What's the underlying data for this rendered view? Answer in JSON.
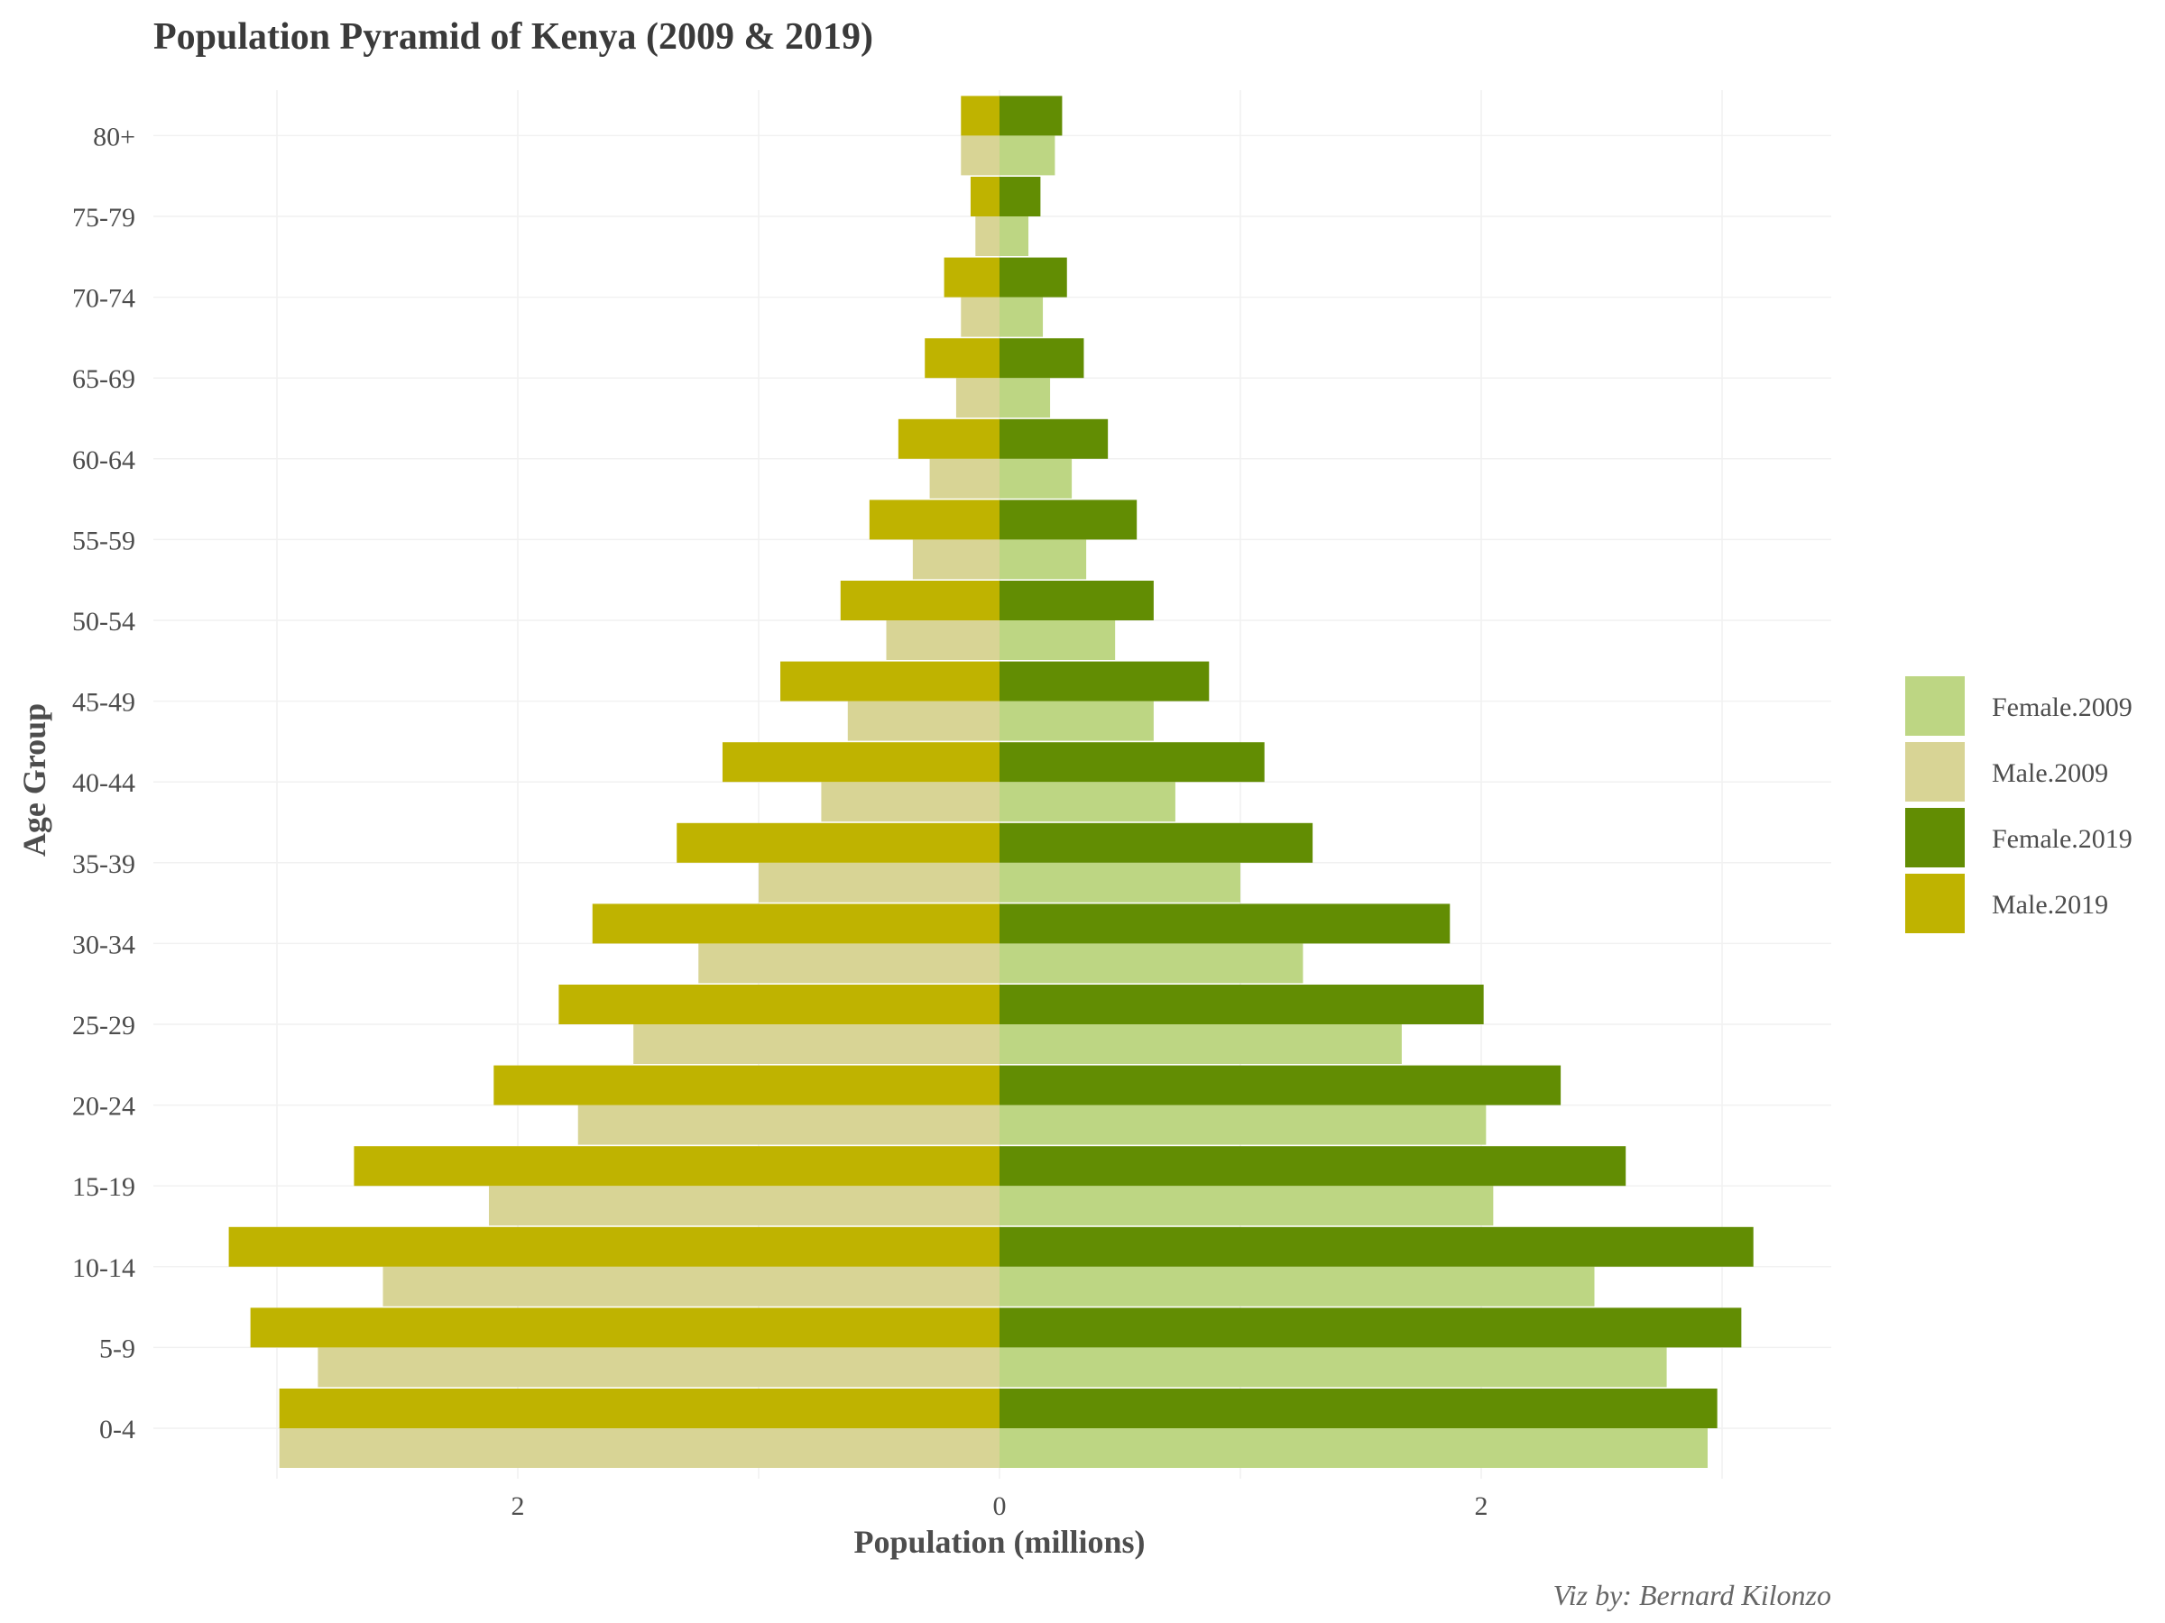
{
  "chart_data": {
    "type": "bar",
    "orientation": "horizontal",
    "title": "Population Pyramid of Kenya (2009 & 2019)",
    "xlabel": "Population (millions)",
    "ylabel": "Age Group",
    "caption": "Viz by: Bernard Kilonzo",
    "xlim": [
      -3.2,
      3.45
    ],
    "xticks": [
      -2,
      0,
      2
    ],
    "xtick_labels": [
      "2",
      "0",
      "2"
    ],
    "grid": true,
    "legend_position": "right",
    "categories": [
      "0-4",
      "5-9",
      "10-14",
      "15-19",
      "20-24",
      "25-29",
      "30-34",
      "35-39",
      "40-44",
      "45-49",
      "50-54",
      "55-59",
      "60-64",
      "65-69",
      "70-74",
      "75-79",
      "80+"
    ],
    "series": [
      {
        "name": "Female.2009",
        "color": "#bdd683",
        "side": "right",
        "slot": "lower",
        "values": [
          2.94,
          2.77,
          2.47,
          2.05,
          2.02,
          1.67,
          1.26,
          1.0,
          0.73,
          0.64,
          0.48,
          0.36,
          0.3,
          0.21,
          0.18,
          0.12,
          0.23
        ]
      },
      {
        "name": "Male.2009",
        "color": "#d8d495",
        "side": "left",
        "slot": "lower",
        "values": [
          2.99,
          2.83,
          2.56,
          2.12,
          1.75,
          1.52,
          1.25,
          1.0,
          0.74,
          0.63,
          0.47,
          0.36,
          0.29,
          0.18,
          0.16,
          0.1,
          0.16
        ]
      },
      {
        "name": "Female.2019",
        "color": "#628d03",
        "side": "right",
        "slot": "upper",
        "values": [
          2.98,
          3.08,
          3.13,
          2.6,
          2.33,
          2.01,
          1.87,
          1.3,
          1.1,
          0.87,
          0.64,
          0.57,
          0.45,
          0.35,
          0.28,
          0.17,
          0.26
        ]
      },
      {
        "name": "Male.2019",
        "color": "#bfb300",
        "side": "left",
        "slot": "upper",
        "values": [
          2.99,
          3.11,
          3.2,
          2.68,
          2.1,
          1.83,
          1.69,
          1.34,
          1.15,
          0.91,
          0.66,
          0.54,
          0.42,
          0.31,
          0.23,
          0.12,
          0.16
        ]
      }
    ],
    "legend": [
      "Female.2009",
      "Male.2009",
      "Female.2019",
      "Male.2019"
    ]
  }
}
